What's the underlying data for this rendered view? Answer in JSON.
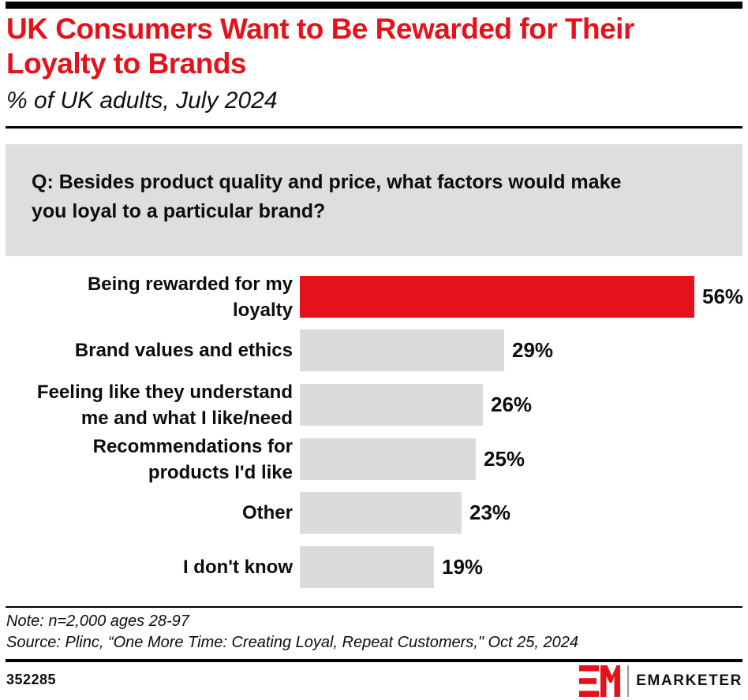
{
  "header": {
    "title_line1": "UK Consumers Want to Be Rewarded for Their",
    "title_line2": "Loyalty to Brands",
    "subtitle": "% of UK adults, July 2024"
  },
  "question": {
    "text": "Q: Besides product quality and price, what factors would make\nyou loyal to a particular brand?"
  },
  "chart_data": {
    "type": "bar",
    "orientation": "horizontal",
    "title": "UK Consumers Want to Be Rewarded for Their Loyalty to Brands",
    "subtitle": "% of UK adults, July 2024",
    "question": "Q: Besides product quality and price, what factors would make you loyal to a particular brand?",
    "unit": "%",
    "xlim": [
      0,
      56
    ],
    "grid": false,
    "legend": "none",
    "categories": [
      "Being rewarded for my loyalty",
      "Brand values and ethics",
      "Feeling like they understand me and what I like/need",
      "Recommendations for products I'd like",
      "Other",
      "I don't know"
    ],
    "values": [
      56,
      29,
      26,
      25,
      23,
      19
    ],
    "rows": [
      {
        "label": "Being rewarded for my\nloyalty",
        "value": 56,
        "display": "56%",
        "highlighted": true
      },
      {
        "label": "Brand values and ethics",
        "value": 29,
        "display": "29%",
        "highlighted": false
      },
      {
        "label": "Feeling like they understand\nme and what I like/need",
        "value": 26,
        "display": "26%",
        "highlighted": false
      },
      {
        "label": "Recommendations for\nproducts I'd like",
        "value": 25,
        "display": "25%",
        "highlighted": false
      },
      {
        "label": "Other",
        "value": 23,
        "display": "23%",
        "highlighted": false
      },
      {
        "label": "I don't know",
        "value": 19,
        "display": "19%",
        "highlighted": false
      }
    ]
  },
  "colors": {
    "accent_red": "#e4121b",
    "bar_gray": "#dbdbdb",
    "question_box_gray": "#dedede",
    "text_black": "#0d0d0d"
  },
  "footnotes": {
    "note": "Note: n=2,000 ages 28-97",
    "source": "Source: Plinc, “One More Time: Creating Loyal, Repeat Customers,\" Oct 25, 2024"
  },
  "footer": {
    "chart_id": "352285",
    "brand": "EMARKETER",
    "logo": "emarketer-em-mark"
  }
}
